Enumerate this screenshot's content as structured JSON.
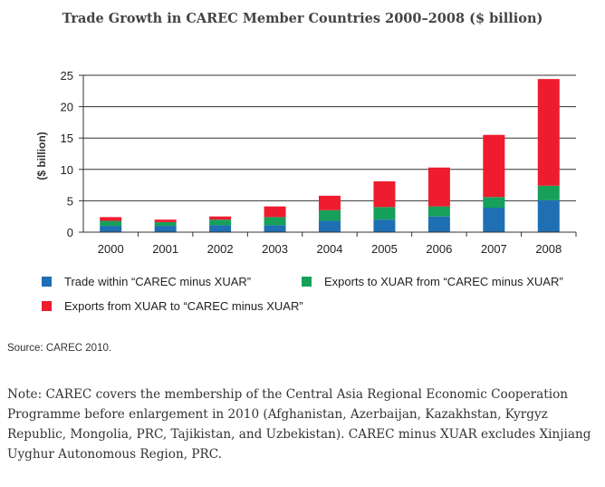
{
  "chart_data": {
    "type": "bar",
    "stacked": true,
    "title": "Trade Growth in CAREC Member Countries 2000–2008 ($ billion)",
    "ylabel": "($ billion)",
    "xlabel": "",
    "categories": [
      "2000",
      "2001",
      "2002",
      "2003",
      "2004",
      "2005",
      "2006",
      "2007",
      "2008"
    ],
    "ylim": [
      0,
      25
    ],
    "yticks": [
      0,
      5,
      10,
      15,
      20,
      25
    ],
    "grid": true,
    "legend_position": "bottom",
    "series": [
      {
        "name": "Trade within “CAREC minus XUAR”",
        "color": "#1f6fb4",
        "values": [
          1.0,
          1.0,
          1.1,
          1.1,
          1.8,
          2.0,
          2.5,
          3.9,
          5.1
        ]
      },
      {
        "name": "Exports to XUAR from “CAREC minus XUAR”",
        "color": "#16a05a",
        "values": [
          0.8,
          0.6,
          0.9,
          1.3,
          1.7,
          2.0,
          1.6,
          1.7,
          2.3
        ]
      },
      {
        "name": "Exports from XUAR to “CAREC minus XUAR”",
        "color": "#ee1c2e",
        "values": [
          0.6,
          0.4,
          0.5,
          1.7,
          2.3,
          4.1,
          6.2,
          9.9,
          17.0
        ]
      }
    ]
  },
  "footer": {
    "source": "Source: CAREC 2010.",
    "note": "Note: CAREC covers the membership of the Central Asia Regional Economic Cooperation Programme before enlargement in 2010 (Afghanistan, Azerbaijan, Kazakhstan, Kyrgyz Republic, Mongolia, PRC, Tajikistan, and Uzbekistan). CAREC minus XUAR excludes Xinjiang Uyghur Autonomous Region, PRC."
  }
}
